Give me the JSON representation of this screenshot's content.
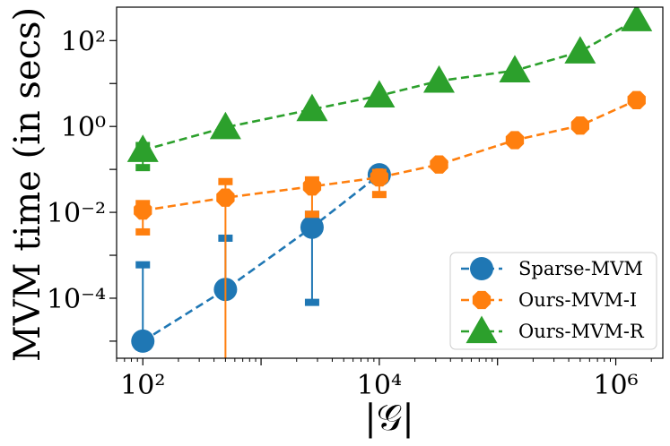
{
  "chart_data": {
    "type": "line",
    "xscale": "log",
    "yscale": "log",
    "xlabel": "|𝒢|",
    "ylabel": "MVM time (in secs)",
    "xlim": [
      60,
      2500000
    ],
    "ylim": [
      4e-06,
      600
    ],
    "x_ticks": [
      {
        "value": 100,
        "label": "10²"
      },
      {
        "value": 10000,
        "label": "10⁴"
      },
      {
        "value": 1000000,
        "label": "10⁶"
      }
    ],
    "y_ticks": [
      {
        "value": 0.0001,
        "label": "10⁻⁴"
      },
      {
        "value": 0.01,
        "label": "10⁻²"
      },
      {
        "value": 1,
        "label": "10⁰"
      },
      {
        "value": 100,
        "label": "10²"
      }
    ],
    "grid": false,
    "legend_position": "lower right",
    "series": [
      {
        "name": "Sparse-MVM",
        "color": "#1f77b4",
        "marker": "circle",
        "x": [
          100,
          500,
          2700,
          10000
        ],
        "y": [
          1e-05,
          0.00016,
          0.0045,
          0.075
        ],
        "err_low": [
          null,
          null,
          8e-05,
          null
        ],
        "err_high": [
          0.0006,
          0.0025,
          0.009,
          null
        ]
      },
      {
        "name": "Ours-MVM-I",
        "color": "#ff7f0e",
        "marker": "octagon",
        "x": [
          100,
          500,
          2700,
          10000,
          32000,
          140000,
          500000,
          1500000
        ],
        "y": [
          0.011,
          0.022,
          0.04,
          0.065,
          0.13,
          0.48,
          1.05,
          4.1
        ],
        "err_low": [
          0.0035,
          1e-06,
          0.009,
          0.026,
          null,
          null,
          null,
          null
        ],
        "err_high": [
          0.016,
          0.052,
          0.057,
          0.085,
          null,
          null,
          null,
          null
        ]
      },
      {
        "name": "Ours-MVM-R",
        "color": "#2ca02c",
        "marker": "triangle",
        "x": [
          100,
          500,
          2700,
          10000,
          32000,
          140000,
          500000,
          1500000
        ],
        "y": [
          0.28,
          0.95,
          2.5,
          5.2,
          11.5,
          20,
          55,
          310
        ],
        "err_low": [
          0.11,
          null,
          null,
          null,
          null,
          null,
          null,
          null
        ],
        "err_high": [
          0.36,
          null,
          null,
          null,
          null,
          null,
          null,
          null
        ]
      }
    ]
  }
}
